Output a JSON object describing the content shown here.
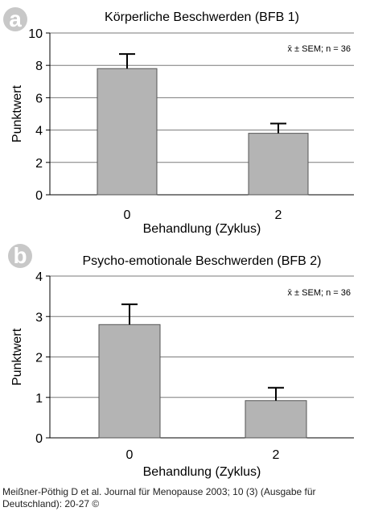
{
  "chart_data": [
    {
      "panel_label": "a",
      "type": "bar",
      "title": "Körperliche Beschwerden (BFB 1)",
      "xlabel": "Behandlung (Zyklus)",
      "ylabel": "Punktwert",
      "categories": [
        "0",
        "2"
      ],
      "values": [
        7.8,
        3.8
      ],
      "errors": [
        0.9,
        0.6
      ],
      "ylim": [
        0,
        10
      ],
      "yticks": [
        "0",
        "2",
        "4",
        "6",
        "8",
        "10"
      ],
      "annotation": "x̄ ± SEM; n = 36",
      "grid": true,
      "bar_color": "#b4b4b4"
    },
    {
      "panel_label": "b",
      "type": "bar",
      "title": "Psycho-emotionale Beschwerden (BFB 2)",
      "xlabel": "Behandlung (Zyklus)",
      "ylabel": "Punktwert",
      "categories": [
        "0",
        "2"
      ],
      "values": [
        2.8,
        0.92
      ],
      "errors": [
        0.5,
        0.32
      ],
      "ylim": [
        0,
        4
      ],
      "yticks": [
        "0",
        "1",
        "2",
        "3",
        "4"
      ],
      "annotation": "x̄ ± SEM; n = 36",
      "grid": true,
      "bar_color": "#b4b4b4"
    }
  ],
  "caption": "Meißner-Pöthig D et al. Journal für Menopause 2003; 10 (3) (Ausgabe für Deutschland): 20-27 ©"
}
